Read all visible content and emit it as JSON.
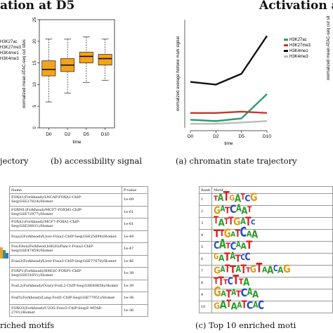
{
  "titles": {
    "left": "ation at D5",
    "right": "Activation a"
  },
  "left_legend": [
    "H3K27ac",
    "H3K27me3",
    "H3K4me1",
    "H3K4me3"
  ],
  "captions": {
    "left_top": "jectory",
    "b": "(b) accessibility signal",
    "a": "(a) chromatin state trajectory",
    "left_bottom": "riched motifs",
    "c": "(c) Top 10 enriched moti"
  },
  "chart_data": [
    {
      "type": "box",
      "ylabel": "normalized mean ATAC-seq cut sites",
      "xlabel": "time",
      "categories": [
        "D0",
        "D2",
        "D5",
        "D10"
      ],
      "ylim": [
        0,
        25
      ],
      "yticks": [
        0,
        5,
        10,
        15,
        20,
        25
      ],
      "box_color": "#f5a31a",
      "boxes": [
        {
          "whisker_low": 6,
          "q1": 12,
          "median": 13.5,
          "q3": 15.5,
          "whisker_high": 20.5
        },
        {
          "whisker_low": 8,
          "q1": 13,
          "median": 14.5,
          "q3": 16,
          "whisker_high": 20.5
        },
        {
          "whisker_low": 10.5,
          "q1": 15,
          "median": 16.5,
          "q3": 17.5,
          "whisker_high": 21
        },
        {
          "whisker_low": 11,
          "q1": 14.5,
          "median": 16,
          "q3": 17,
          "whisker_high": 20.5
        }
      ]
    },
    {
      "type": "line",
      "ylabel": "normalized average histone mark signal",
      "xlabel": "time",
      "x": [
        "D0",
        "D2",
        "D5",
        "D10"
      ],
      "ylim": [
        0,
        40
      ],
      "series": [
        {
          "name": "H3K27ac",
          "color": "#2a9d6e",
          "values": [
            3,
            2.5,
            3.5,
            12.5
          ]
        },
        {
          "name": "H3K27me3",
          "color": "#c0392b",
          "values": [
            5.5,
            5.5,
            6,
            5.5
          ]
        },
        {
          "name": "H3K4me1",
          "color": "#111111",
          "values": [
            17,
            16,
            20,
            34
          ]
        },
        {
          "name": "H3K4me3",
          "color": "#bdbdbd",
          "values": [
            1.5,
            1.5,
            2,
            2.5
          ]
        }
      ]
    }
  ],
  "left_table": {
    "headers": [
      "Name",
      "P-value"
    ],
    "rows": [
      {
        "name": "FOXA1(Forkhead)/LNCAP-FOXA1-ChIP-Seq(GSE27824)/Homer",
        "p": "1e-69"
      },
      {
        "name": "FOXM1(Forkhead)/MCF7-FOXM1-ChIP-Seq(GSE72977)/Homer",
        "p": "1e-61"
      },
      {
        "name": "FOXA1(Forkhead)/MCF7-FOXA1-ChIP-Seq(GSE26831)/Homer",
        "p": "1e-61"
      },
      {
        "name": "Foxa2(Forkhead)/Liver-Foxa2-ChIP-Seq(GSE25694)/Homer",
        "p": "1e-49"
      },
      {
        "name": "Fox:Ebox(Forkhead,bHLH)/Panc1-Foxa2-ChIP-Seq(GSE47459)/Homer",
        "p": "1e-47"
      },
      {
        "name": "Foxa3(Forkhead)/Liver-Foxa3-ChIP-Seq(GSE77670)/Homer",
        "p": "1e-46"
      },
      {
        "name": "FOXP1(Forkhead)/H9ESC-FOXP1-ChIP-Seq(GSE31651)/Homer",
        "p": "1e-39"
      },
      {
        "name": "FoxL2(Forkhead)/Ovary-FoxL2-ChIP-Seq(GSE60858)/Homer",
        "p": "1e-39"
      },
      {
        "name": "Foxf1(Forkhead)/Lung-Foxf1-ChIP-Seq(GSE77951)/Homer",
        "p": "1e-36"
      },
      {
        "name": "FOXO3(Forkhead)/U2OS-Foxo3-ChIP-Seq(E-MTAB-2701)/Homer",
        "p": "1e-36"
      }
    ]
  },
  "right_table": {
    "headers": [
      "Rank",
      "Motif"
    ],
    "motifs": [
      {
        "rank": "1",
        "seq": "TATGATCG"
      },
      {
        "rank": "2",
        "seq": "GATCAAT"
      },
      {
        "rank": "3",
        "seq": "TATTGATC"
      },
      {
        "rank": "4",
        "seq": "TTGATCAA"
      },
      {
        "rank": "5",
        "seq": "CATCAAT"
      },
      {
        "rank": "6",
        "seq": "GATATCC"
      },
      {
        "rank": "7",
        "seq": "GATTATTGTAACAG"
      },
      {
        "rank": "8",
        "seq": "TTTCTTA"
      },
      {
        "rank": "9",
        "seq": "GATATCAA"
      },
      {
        "rank": "10",
        "seq": "GATAATCAC"
      }
    ]
  }
}
